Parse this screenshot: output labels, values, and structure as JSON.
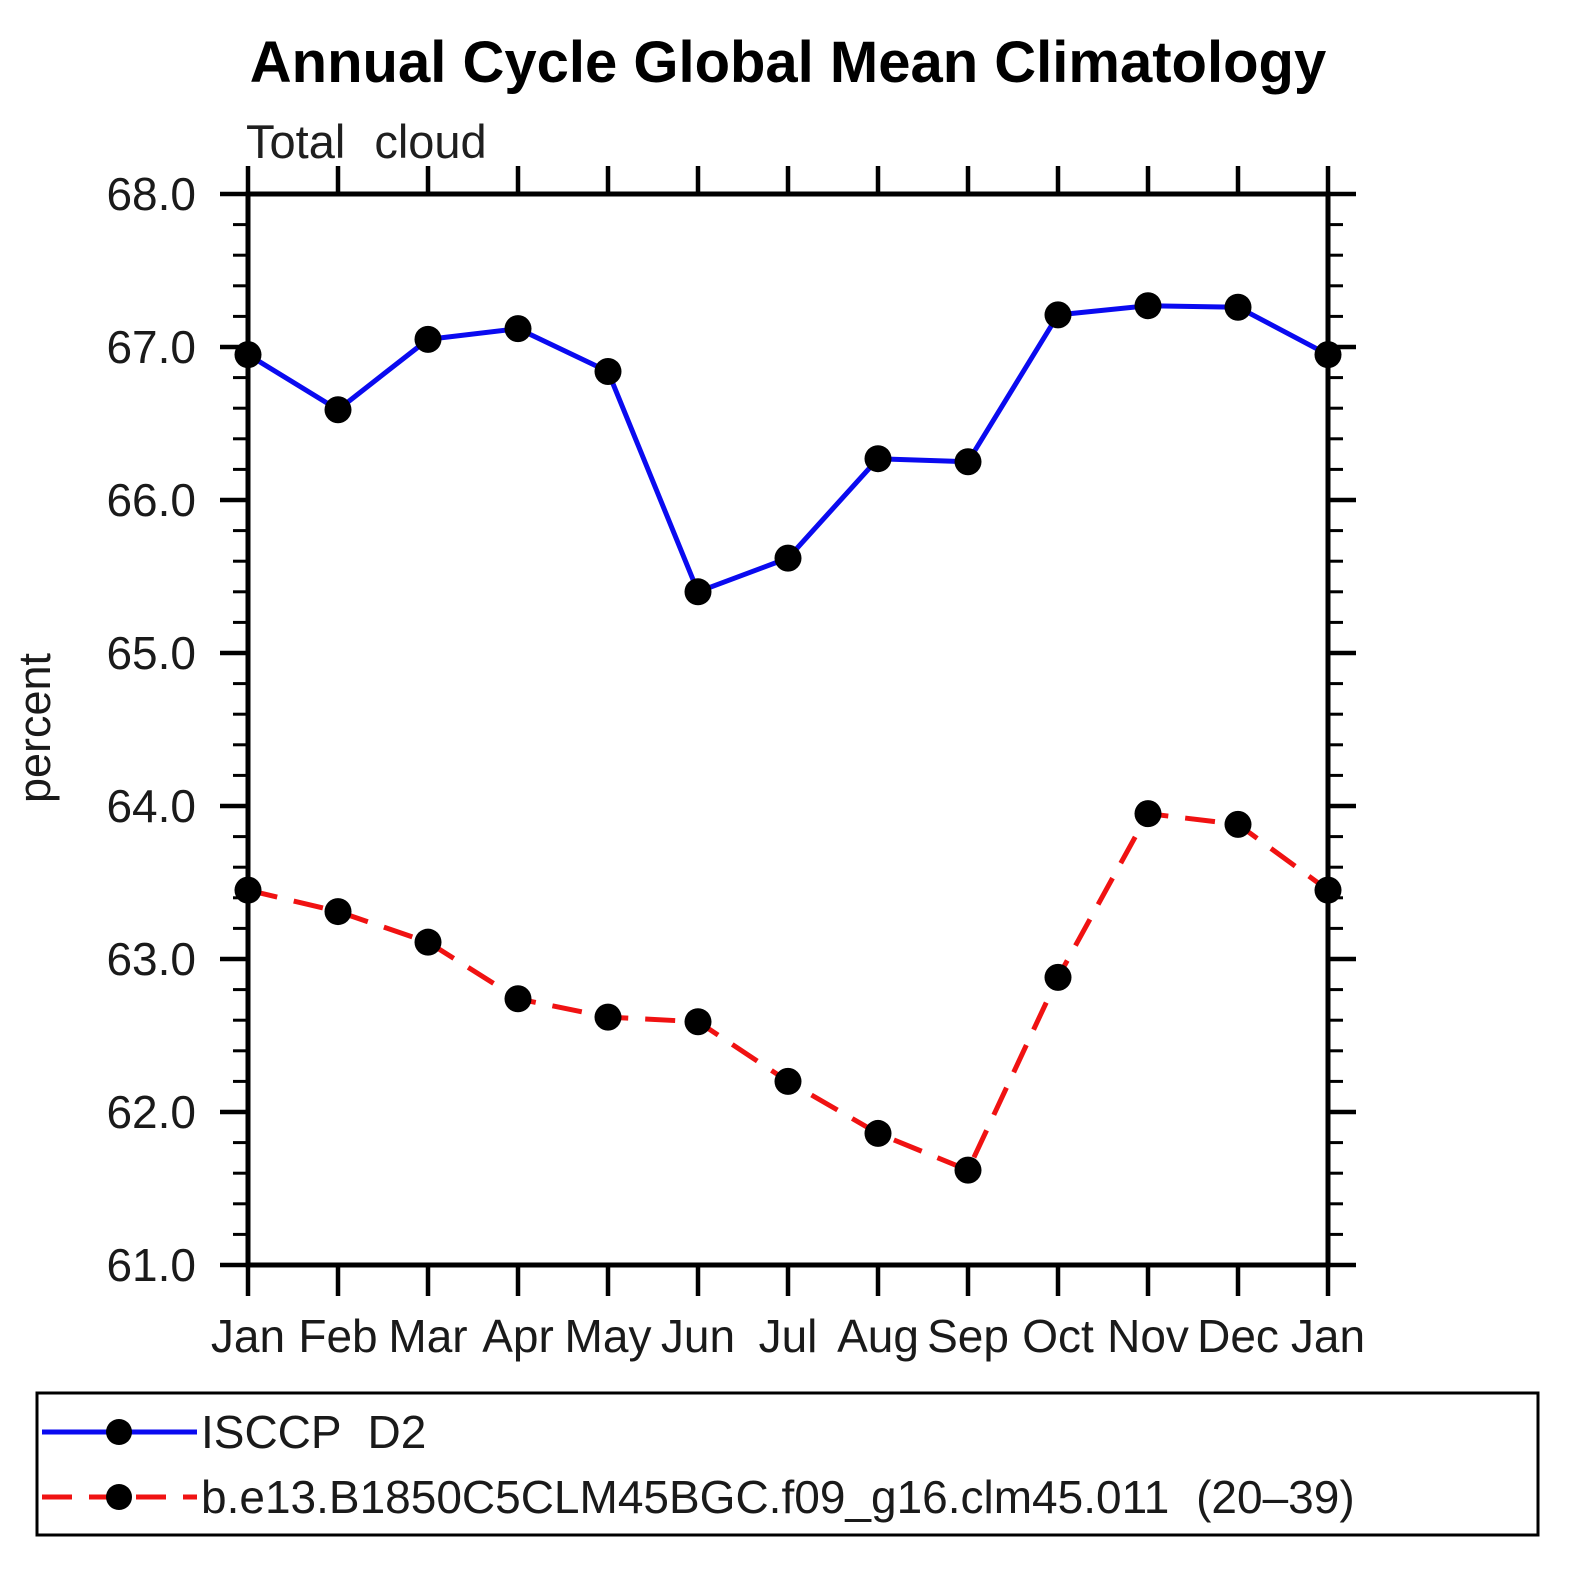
{
  "title": "Annual Cycle Global Mean Climatology",
  "subtitle": "Total cloud",
  "ylabel": "percent",
  "colors": {
    "series1": "#0A0AF0",
    "series2": "#F01212",
    "marker": "#000000",
    "axis": "#000000",
    "text": "#1A1A1A"
  },
  "chart_data": {
    "type": "line",
    "title": "Annual Cycle Global Mean Climatology",
    "subtitle": "Total cloud",
    "xlabel": "",
    "ylabel": "percent",
    "categories": [
      "Jan",
      "Feb",
      "Mar",
      "Apr",
      "May",
      "Jun",
      "Jul",
      "Aug",
      "Sep",
      "Oct",
      "Nov",
      "Dec",
      "Jan"
    ],
    "series": [
      {
        "name": "ISCCP D2",
        "line_style": "solid",
        "color": "#0A0AF0",
        "marker": "circle",
        "marker_color": "#000000",
        "values": [
          66.95,
          66.59,
          67.05,
          67.12,
          66.84,
          65.4,
          65.62,
          66.27,
          66.25,
          67.21,
          67.27,
          67.26,
          66.95
        ]
      },
      {
        "name": "b.e13.B1850C5CLM45BGC.f09_g16.clm45.011 (20–39)",
        "line_style": "dashed",
        "color": "#F01212",
        "marker": "circle",
        "marker_color": "#000000",
        "values": [
          63.45,
          63.31,
          63.11,
          62.74,
          62.62,
          62.59,
          62.2,
          61.86,
          61.62,
          62.88,
          63.95,
          63.88,
          63.45
        ]
      }
    ],
    "ylim": [
      61.0,
      68.0
    ],
    "y_major_step": 1.0,
    "y_minor_step": 0.2,
    "y_tick_labels": [
      "61.0",
      "62.0",
      "63.0",
      "64.0",
      "65.0",
      "66.0",
      "67.0",
      "68.0"
    ],
    "grid": false,
    "legend_position": "bottom-box"
  },
  "legend": {
    "items": [
      {
        "label": "ISCCP D2"
      },
      {
        "label": "b.e13.B1850C5CLM45BGC.f09_g16.clm45.011 (20–39)"
      }
    ]
  }
}
